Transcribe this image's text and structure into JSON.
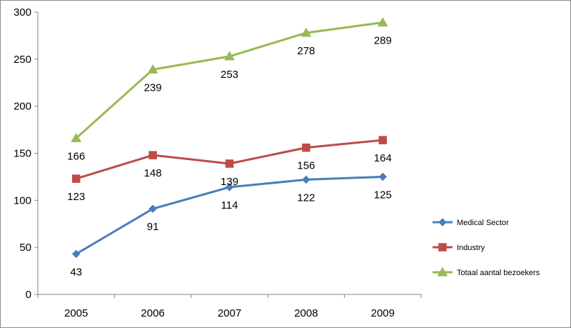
{
  "chart_data": {
    "type": "line",
    "title": "",
    "xlabel": "",
    "ylabel": "",
    "categories": [
      "2005",
      "2006",
      "2007",
      "2008",
      "2009"
    ],
    "ylim": [
      0,
      300
    ],
    "yticks": [
      0,
      50,
      100,
      150,
      200,
      250,
      300
    ],
    "grid": false,
    "legend_placement": "right",
    "series": [
      {
        "name": "Medical Sector",
        "values": [
          43,
          91,
          114,
          122,
          125
        ],
        "color": "#4a7ebb",
        "marker": "diamond",
        "label_position": "below"
      },
      {
        "name": "Industry",
        "values": [
          123,
          148,
          139,
          156,
          164
        ],
        "color": "#be4b48",
        "marker": "square",
        "label_position": "below"
      },
      {
        "name": "Totaal aantal bezoekers",
        "values": [
          166,
          239,
          253,
          278,
          289
        ],
        "color": "#98b954",
        "marker": "triangle",
        "label_position": "below"
      }
    ]
  }
}
